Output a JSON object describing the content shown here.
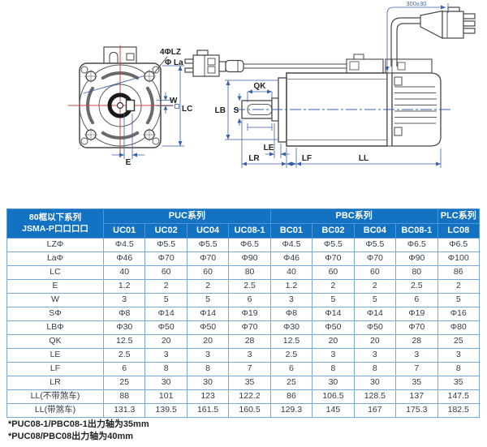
{
  "colors": {
    "header_blue": "#1472c2",
    "grid_blue": "#7aa9d8",
    "outer_border_blue": "#2e75b6",
    "dimension_blue": "#3b5fa8",
    "centerline_red": "#cc4444",
    "drawing_line": "#474747"
  },
  "diagram": {
    "labels": {
      "holes": "4ΦLZ",
      "bolt_circle": "Φ La",
      "keyway_width": "W",
      "flange_size": "LC",
      "key_offset": "E",
      "keyway_length": "QK",
      "shaft_dia": "S",
      "pilot_dia": "LB",
      "boss_height": "LE",
      "shaft_length": "LR",
      "flange_thickness": "LF",
      "body_length": "LL",
      "cable_length": "300±30"
    }
  },
  "table": {
    "corner_line1": "80框以下系列",
    "corner_line2": "JSMA-P口口口口",
    "groups": [
      {
        "label": "PUC系列",
        "span": 4
      },
      {
        "label": "PBC系列",
        "span": 4
      },
      {
        "label": "PLC系列",
        "span": 1
      }
    ],
    "models": [
      "UC01",
      "UC02",
      "UC04",
      "UC08-1",
      "BC01",
      "BC02",
      "BC04",
      "BC08-1",
      "LC08"
    ],
    "rows": [
      {
        "label": "LZΦ",
        "values": [
          "Φ4.5",
          "Φ5.5",
          "Φ5.5",
          "Φ6.5",
          "Φ4.5",
          "Φ5.5",
          "Φ5.5",
          "Φ6.5",
          "Φ6.5"
        ]
      },
      {
        "label": "LaΦ",
        "values": [
          "Φ46",
          "Φ70",
          "Φ70",
          "Φ90",
          "Φ46",
          "Φ70",
          "Φ70",
          "Φ90",
          "Φ100"
        ]
      },
      {
        "label": "LC",
        "values": [
          "40",
          "60",
          "60",
          "80",
          "40",
          "60",
          "60",
          "80",
          "86"
        ]
      },
      {
        "label": "E",
        "values": [
          "1.2",
          "2",
          "2",
          "2.5",
          "1.2",
          "2",
          "2",
          "2.5",
          "2"
        ]
      },
      {
        "label": "W",
        "values": [
          "3",
          "5",
          "5",
          "6",
          "3",
          "5",
          "5",
          "6",
          "5"
        ]
      },
      {
        "label": "SΦ",
        "values": [
          "Φ8",
          "Φ14",
          "Φ14",
          "Φ19",
          "Φ8",
          "Φ14",
          "Φ14",
          "Φ19",
          "Φ16"
        ]
      },
      {
        "label": "LBΦ",
        "values": [
          "Φ30",
          "Φ50",
          "Φ50",
          "Φ70",
          "Φ30",
          "Φ50",
          "Φ50",
          "Φ70",
          "Φ80"
        ]
      },
      {
        "label": "QK",
        "values": [
          "12.5",
          "20",
          "20",
          "28",
          "12.5",
          "20",
          "20",
          "28",
          "25"
        ]
      },
      {
        "label": "LE",
        "values": [
          "2.5",
          "3",
          "3",
          "3",
          "2.5",
          "3",
          "3",
          "3",
          "3"
        ]
      },
      {
        "label": "LF",
        "values": [
          "6",
          "8",
          "8",
          "7",
          "6",
          "8",
          "8",
          "7",
          "8"
        ]
      },
      {
        "label": "LR",
        "values": [
          "25",
          "30",
          "30",
          "35",
          "25",
          "30",
          "30",
          "35",
          "35"
        ]
      },
      {
        "label": "LL(不带煞车)",
        "values": [
          "88",
          "101",
          "123",
          "122.2",
          "86",
          "106.5",
          "128.5",
          "137",
          "147.5"
        ]
      },
      {
        "label": "LL(带煞车)",
        "values": [
          "131.3",
          "139.5",
          "161.5",
          "160.5",
          "129.3",
          "145",
          "167",
          "175.3",
          "182.5"
        ]
      }
    ]
  },
  "footnotes": [
    "*PUC08-1/PBC08-1出力轴为35mm",
    "*PUC08/PBC08出力轴为40mm"
  ]
}
